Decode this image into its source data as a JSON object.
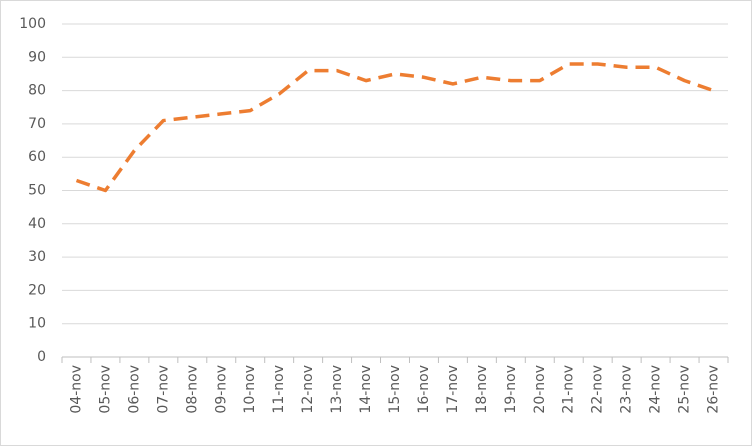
{
  "chart_data": {
    "type": "line",
    "categories": [
      "04-nov",
      "05-nov",
      "06-nov",
      "07-nov",
      "08-nov",
      "09-nov",
      "10-nov",
      "11-nov",
      "12-nov",
      "13-nov",
      "14-nov",
      "15-nov",
      "16-nov",
      "17-nov",
      "18-nov",
      "19-nov",
      "20-nov",
      "21-nov",
      "22-nov",
      "23-nov",
      "24-nov",
      "25-nov",
      "26-nov"
    ],
    "values": [
      53,
      50,
      62,
      71,
      72,
      73,
      74,
      79,
      86,
      86,
      83,
      85,
      84,
      82,
      84,
      83,
      83,
      88,
      88,
      87,
      87,
      83,
      80
    ],
    "color": "#ed7d31",
    "dashed": true,
    "ylim": [
      0,
      100
    ],
    "yticks": [
      0,
      10,
      20,
      30,
      40,
      50,
      60,
      70,
      80,
      90,
      100
    ],
    "grid": true
  }
}
